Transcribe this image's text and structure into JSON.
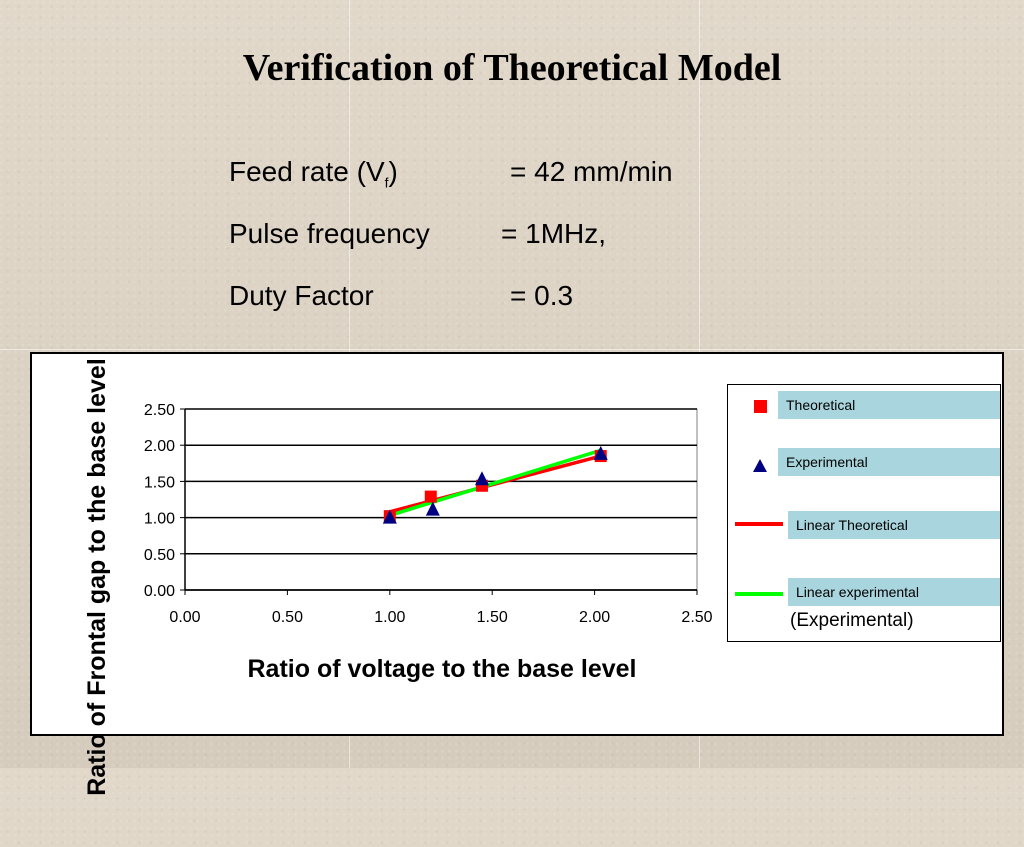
{
  "slide": {
    "title": "Verification of Theoretical Model",
    "params": [
      {
        "label": "Feed rate (V",
        "sub": "f",
        "close": ")",
        "value": "= 42 mm/min"
      },
      {
        "label": "Pulse frequency",
        "value": "=  1MHz,"
      },
      {
        "label": "Duty Factor",
        "value": "=  0.3"
      }
    ]
  },
  "chart_data": {
    "type": "scatter",
    "xlabel": "Ratio of voltage to the base level",
    "ylabel": "Ratio of Frontal gap to the base level",
    "xlim": [
      0,
      2.5
    ],
    "ylim": [
      0,
      2.5
    ],
    "x_ticks": [
      "0.00",
      "0.50",
      "1.00",
      "1.50",
      "2.00",
      "2.50"
    ],
    "y_ticks": [
      "0.00",
      "0.50",
      "1.00",
      "1.50",
      "2.00",
      "2.50"
    ],
    "grid": "horizontal",
    "legend_position": "right",
    "series": [
      {
        "name": "Theoretical",
        "marker": "square",
        "color": "#ff0000",
        "points": [
          [
            1.0,
            1.02
          ],
          [
            1.2,
            1.29
          ],
          [
            1.45,
            1.44
          ],
          [
            2.03,
            1.85
          ]
        ]
      },
      {
        "name": "Experimental",
        "marker": "triangle",
        "color": "#000080",
        "points": [
          [
            1.0,
            1.0
          ],
          [
            1.21,
            1.11
          ],
          [
            1.45,
            1.53
          ],
          [
            2.03,
            1.88
          ]
        ]
      },
      {
        "name": "Linear Theoretical",
        "type": "line",
        "color": "#ff0000",
        "points": [
          [
            1.0,
            1.08
          ],
          [
            2.03,
            1.85
          ]
        ]
      },
      {
        "name": "Linear experimental",
        "type": "line",
        "color": "#00ff00",
        "points": [
          [
            1.0,
            1.03
          ],
          [
            2.03,
            1.93
          ]
        ]
      }
    ],
    "legend_partial_text": "(Experimental)"
  }
}
